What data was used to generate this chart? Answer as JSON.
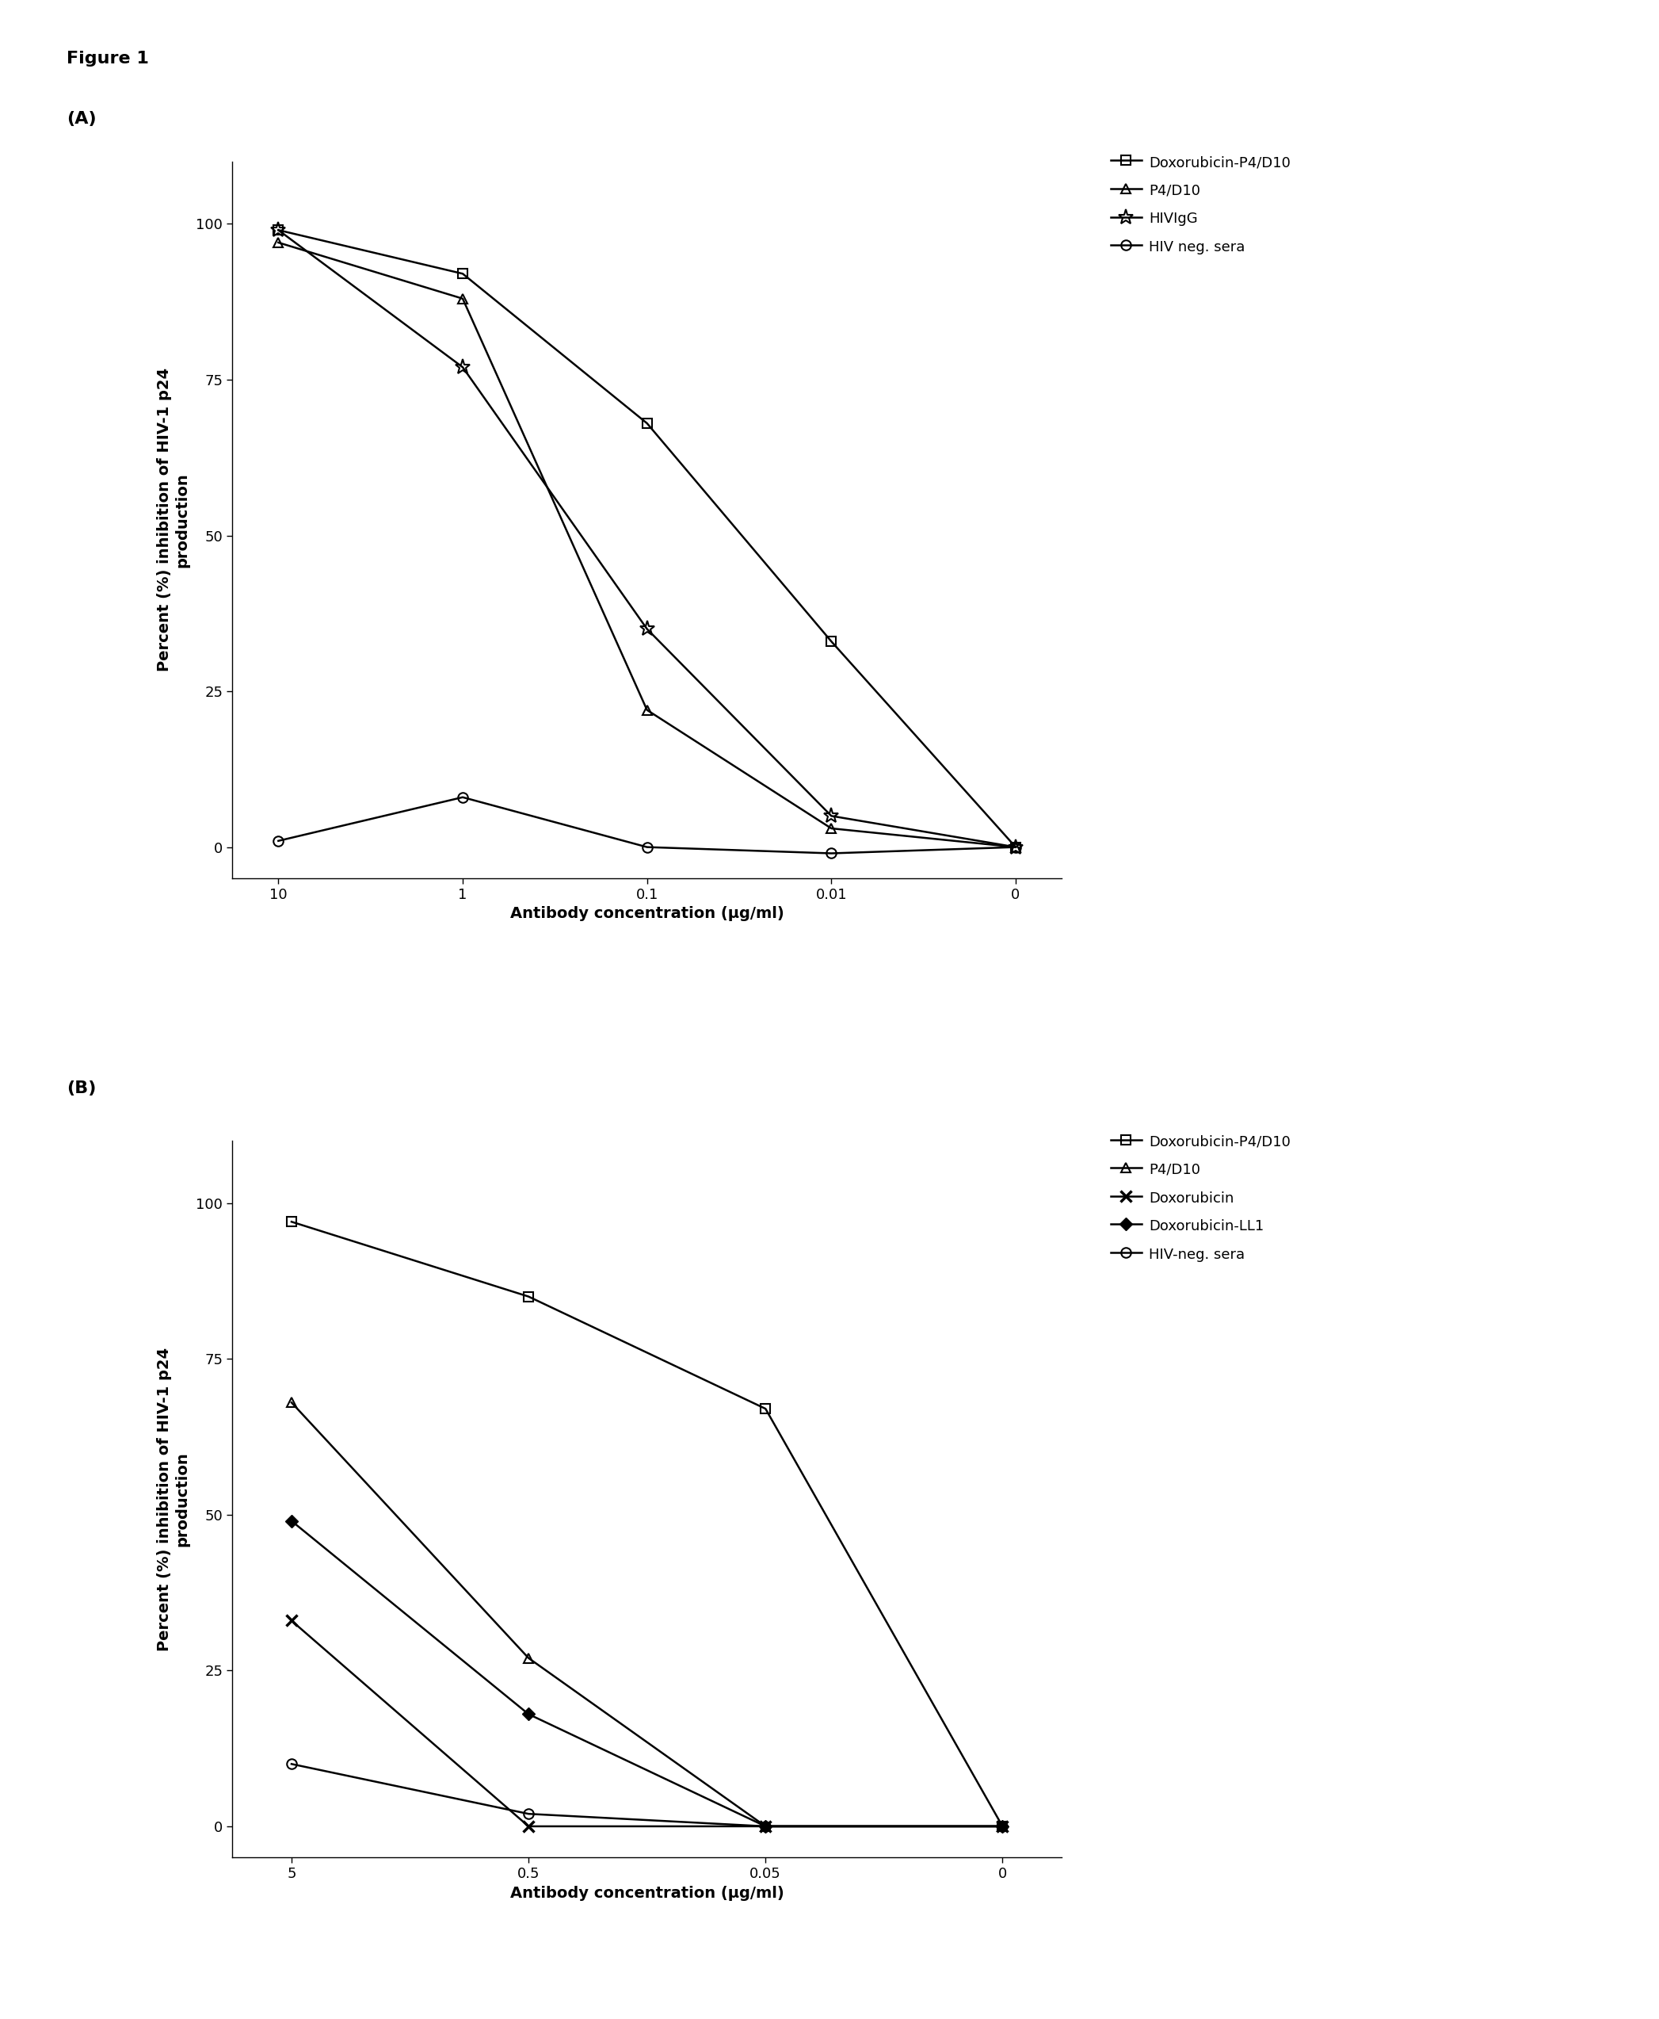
{
  "figure_title": "Figure 1",
  "panel_A": {
    "label": "(A)",
    "x_positions": [
      0,
      1,
      2,
      3,
      4
    ],
    "x_ticklabels": [
      "10",
      "1",
      "0.1",
      "0.01",
      "0"
    ],
    "xlabel": "Antibody concentration (μg/ml)",
    "ylabel": "Percent (%) inhibition of HIV-1 p24\nproduction",
    "ylim": [
      -5,
      110
    ],
    "yticks": [
      0,
      25,
      50,
      75,
      100
    ],
    "series": {
      "Doxorubicin-P4/D10": {
        "y": [
          99,
          92,
          68,
          33,
          0
        ],
        "marker": "s",
        "linestyle": "-",
        "color": "#000000",
        "markersize": 9,
        "fillstyle": "none"
      },
      "P4/D10": {
        "y": [
          97,
          88,
          22,
          3,
          0
        ],
        "marker": "^",
        "linestyle": "-",
        "color": "#000000",
        "markersize": 9,
        "fillstyle": "none"
      },
      "HIVIgG": {
        "y": [
          99,
          77,
          35,
          5,
          0
        ],
        "marker": "*",
        "linestyle": "-",
        "color": "#000000",
        "markersize": 14,
        "fillstyle": "none"
      },
      "HIV neg. sera": {
        "y": [
          1,
          8,
          0,
          -1,
          0
        ],
        "marker": "o",
        "linestyle": "-",
        "color": "#000000",
        "markersize": 9,
        "fillstyle": "none"
      }
    },
    "legend_order": [
      "Doxorubicin-P4/D10",
      "P4/D10",
      "HIVIgG",
      "HIV neg. sera"
    ]
  },
  "panel_B": {
    "label": "(B)",
    "x_positions": [
      0,
      1,
      2,
      3
    ],
    "x_ticklabels": [
      "5",
      "0.5",
      "0.05",
      "0"
    ],
    "xlabel": "Antibody concentration (μg/ml)",
    "ylabel": "Percent (%) inhibition of HIV-1 p24\nproduction",
    "ylim": [
      -5,
      110
    ],
    "yticks": [
      0,
      25,
      50,
      75,
      100
    ],
    "series": {
      "Doxorubicin-P4/D10": {
        "y": [
          97,
          85,
          67,
          0
        ],
        "marker": "s",
        "linestyle": "-",
        "color": "#000000",
        "markersize": 9,
        "fillstyle": "none"
      },
      "P4/D10": {
        "y": [
          68,
          27,
          0,
          0
        ],
        "marker": "^",
        "linestyle": "-",
        "color": "#000000",
        "markersize": 9,
        "fillstyle": "none"
      },
      "Doxorubicin": {
        "y": [
          33,
          0,
          0,
          0
        ],
        "marker": "x",
        "linestyle": "-",
        "color": "#000000",
        "markersize": 10,
        "fillstyle": "full",
        "markeredgewidth": 2.5
      },
      "Doxorubicin-LL1": {
        "y": [
          49,
          18,
          0,
          0
        ],
        "marker": "D",
        "linestyle": "-",
        "color": "#000000",
        "markersize": 8,
        "fillstyle": "full"
      },
      "HIV-neg. sera": {
        "y": [
          10,
          2,
          0,
          0
        ],
        "marker": "o",
        "linestyle": "-",
        "color": "#000000",
        "markersize": 9,
        "fillstyle": "none"
      }
    },
    "legend_order": [
      "Doxorubicin-P4/D10",
      "P4/D10",
      "Doxorubicin",
      "Doxorubicin-LL1",
      "HIV-neg. sera"
    ]
  },
  "bg_color": "#ffffff",
  "font_color": "#000000",
  "linewidth": 1.8,
  "legend_fontsize": 13,
  "axis_label_fontsize": 14,
  "tick_fontsize": 13,
  "title_fontsize": 16,
  "panel_label_fontsize": 16
}
